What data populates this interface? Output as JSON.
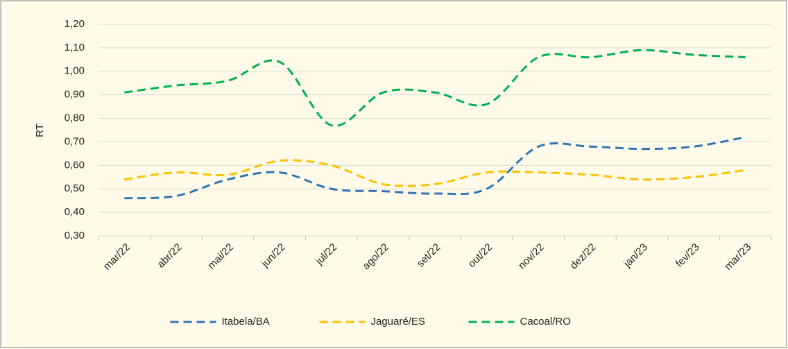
{
  "chart_data": {
    "type": "line",
    "y_label": "RT",
    "categories": [
      "mar/22",
      "abr/22",
      "mai/22",
      "jun/22",
      "jul/22",
      "ago/22",
      "set/22",
      "out/22",
      "nov/22",
      "dez/22",
      "jan/23",
      "fev/23",
      "mar/23"
    ],
    "series": [
      {
        "name": "Itabela/BA",
        "color": "#2e75b6",
        "values": [
          0.46,
          0.47,
          0.54,
          0.57,
          0.5,
          0.49,
          0.48,
          0.5,
          0.68,
          0.68,
          0.67,
          0.68,
          0.72
        ]
      },
      {
        "name": "Jaguaré/ES",
        "color": "#ffc000",
        "values": [
          0.54,
          0.57,
          0.56,
          0.62,
          0.6,
          0.52,
          0.52,
          0.57,
          0.57,
          0.56,
          0.54,
          0.55,
          0.58
        ]
      },
      {
        "name": "Cacoal/RO",
        "color": "#00b050",
        "values": [
          0.91,
          0.94,
          0.96,
          1.04,
          0.77,
          0.91,
          0.91,
          0.86,
          1.06,
          1.06,
          1.09,
          1.07,
          1.06
        ]
      }
    ],
    "ylim": [
      0.3,
      1.2
    ],
    "yticks": [
      {
        "value": 0.3,
        "label": "0,30"
      },
      {
        "value": 0.4,
        "label": "0,40"
      },
      {
        "value": 0.5,
        "label": "0,50"
      },
      {
        "value": 0.6,
        "label": "0,60"
      },
      {
        "value": 0.7,
        "label": "0,70"
      },
      {
        "value": 0.8,
        "label": "0,80"
      },
      {
        "value": 0.9,
        "label": "0,90"
      },
      {
        "value": 1.0,
        "label": "1,00"
      },
      {
        "value": 1.1,
        "label": "1,10"
      },
      {
        "value": 1.2,
        "label": "1,20"
      }
    ],
    "grid": true,
    "legend": "bottom",
    "smooth": true,
    "dashed": true
  }
}
